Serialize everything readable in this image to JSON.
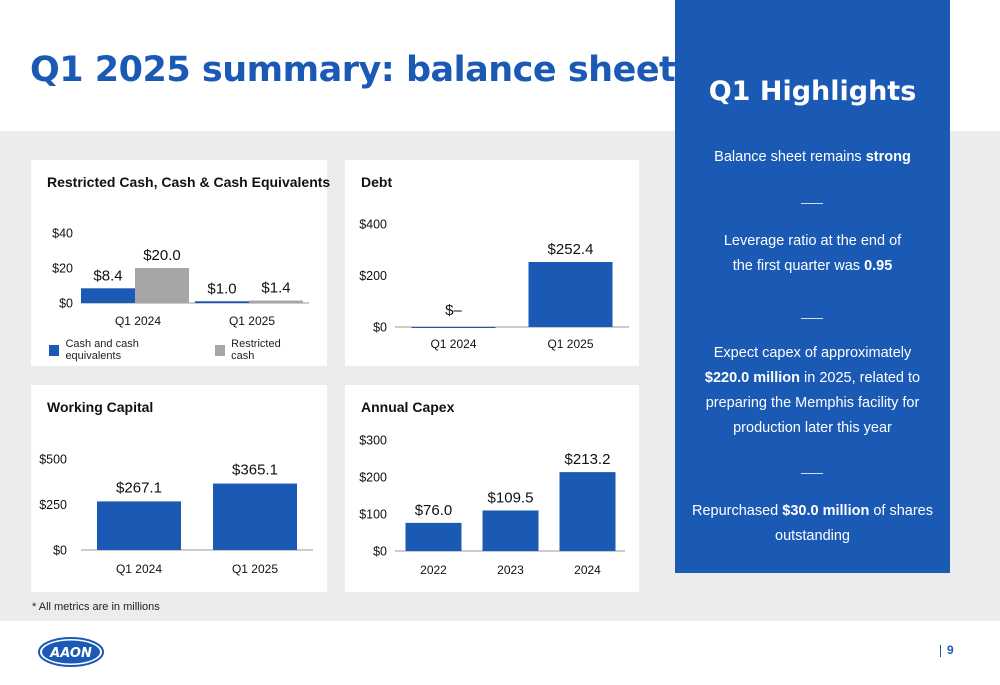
{
  "page": {
    "title": "Q1 2025 summary: balance sheet",
    "note": "*  All metrics are in millions",
    "page_number": "9",
    "logo_text": "AAON"
  },
  "colors": {
    "brand_blue": "#1a5ab4",
    "restricted_gray": "#a6a6a6",
    "background_gray": "#ececec"
  },
  "highlights": {
    "title": "Q1 Highlights",
    "items": [
      {
        "pre": "Balance sheet remains ",
        "bold": "strong",
        "post": ""
      },
      {
        "pre": "Leverage ratio at the end of the first quarter was ",
        "bold": "0.95",
        "post": ""
      },
      {
        "pre": "Expect capex of approximately ",
        "bold": "$220.0 million",
        "post": " in 2025, related to preparing the Memphis facility for production later this year"
      },
      {
        "pre": "Repurchased ",
        "bold": "$30.0 million",
        "post": " of shares outstanding"
      }
    ]
  },
  "chart_data": [
    {
      "id": "cash",
      "type": "bar",
      "title": "Restricted Cash, Cash & Cash Equivalents",
      "categories": [
        "Q1 2024",
        "Q1 2025"
      ],
      "series": [
        {
          "name": "Cash and cash equivalents",
          "values": [
            8.4,
            1.0
          ],
          "labels": [
            "$8.4",
            "$1.0"
          ],
          "color": "#1a5ab4"
        },
        {
          "name": "Restricted cash",
          "values": [
            20.0,
            1.4
          ],
          "labels": [
            "$20.0",
            "$1.4"
          ],
          "color": "#a6a6a6"
        }
      ],
      "yticks": [
        0,
        20,
        40
      ],
      "ytick_labels": [
        "$0",
        "$20",
        "$40"
      ],
      "ylim": [
        0,
        40
      ],
      "legend": "bottom"
    },
    {
      "id": "debt",
      "type": "bar",
      "title": "Debt",
      "categories": [
        "Q1 2024",
        "Q1 2025"
      ],
      "series": [
        {
          "values": [
            0,
            252.4
          ],
          "labels": [
            "$–",
            "$252.4"
          ],
          "color": "#1a5ab4"
        }
      ],
      "yticks": [
        0,
        200,
        400
      ],
      "ytick_labels": [
        "$0",
        "$200",
        "$400"
      ],
      "ylim": [
        0,
        400
      ]
    },
    {
      "id": "wc",
      "type": "bar",
      "title": "Working Capital",
      "categories": [
        "Q1 2024",
        "Q1 2025"
      ],
      "series": [
        {
          "values": [
            267.1,
            365.1
          ],
          "labels": [
            "$267.1",
            "$365.1"
          ],
          "color": "#1a5ab4"
        }
      ],
      "yticks": [
        0,
        250,
        500
      ],
      "ytick_labels": [
        "$0",
        "$250",
        "$500"
      ],
      "ylim": [
        0,
        500
      ]
    },
    {
      "id": "capex",
      "type": "bar",
      "title": "Annual Capex",
      "categories": [
        "2022",
        "2023",
        "2024"
      ],
      "series": [
        {
          "values": [
            76.0,
            109.5,
            213.2
          ],
          "labels": [
            "$76.0",
            "$109.5",
            "$213.2"
          ],
          "color": "#1a5ab4"
        }
      ],
      "yticks": [
        0,
        100,
        200,
        300
      ],
      "ytick_labels": [
        "$0",
        "$100",
        "$200",
        "$300"
      ],
      "ylim": [
        0,
        300
      ]
    }
  ]
}
